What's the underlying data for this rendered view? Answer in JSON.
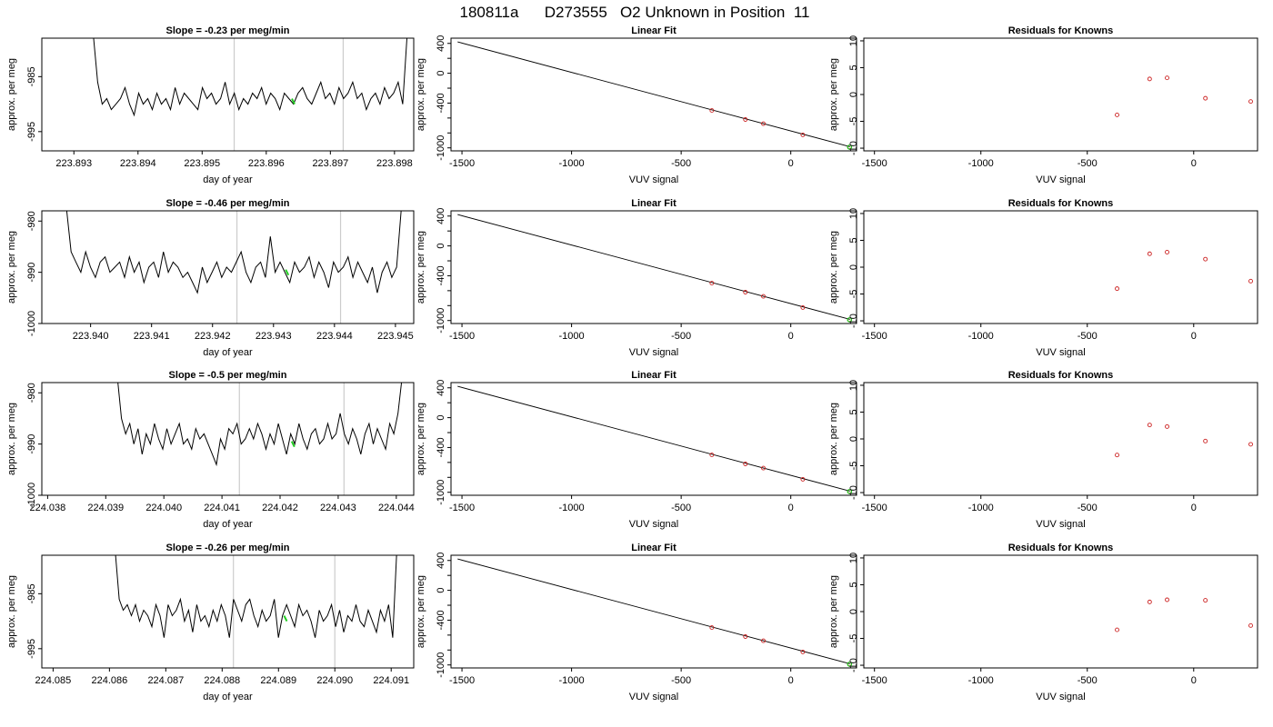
{
  "figure": {
    "title": "180811a      D273555   O2 Unknown in Position  11"
  },
  "chart_data": [
    {
      "type": "line",
      "panel": "trace-1",
      "title": "Slope =  -0.23  per meg/min",
      "xlabel": "day of year",
      "ylabel": "approx. per meg",
      "xlim": [
        223.8925,
        223.8983
      ],
      "ylim": [
        -998.5,
        -978.0
      ],
      "xticks": [
        "223.893",
        "223.894",
        "223.895",
        "223.896",
        "223.897",
        "223.898"
      ],
      "yticks": [
        "-985",
        "-995"
      ],
      "ytick_values": [
        -985,
        -995
      ],
      "vlines": [
        223.8955,
        223.8972
      ],
      "highlight": {
        "x": 223.8964,
        "y": -989.5,
        "color": "#22cc22"
      },
      "x_start": 223.8933,
      "x_end": 223.8982,
      "y_level": -989.5,
      "values": [
        -977,
        -986,
        -990,
        -989,
        -991,
        -990,
        -989,
        -987,
        -990,
        -992,
        -988,
        -990,
        -989,
        -991,
        -988,
        -990,
        -989,
        -991,
        -987,
        -990,
        -988,
        -989,
        -990,
        -991,
        -987,
        -989,
        -988,
        -990,
        -989,
        -986,
        -990,
        -988,
        -991,
        -989,
        -990,
        -988,
        -989,
        -987,
        -990,
        -988,
        -989,
        -991,
        -988,
        -989,
        -990,
        -988,
        -987,
        -989,
        -990,
        -988,
        -986,
        -989,
        -988,
        -990,
        -987,
        -989,
        -988,
        -986,
        -989,
        -988,
        -991,
        -989,
        -988,
        -990,
        -987,
        -989,
        -988,
        -986,
        -990,
        -977
      ]
    },
    {
      "type": "scatter",
      "panel": "fit-1",
      "title": "Linear Fit",
      "xlabel": "VUV signal",
      "ylabel": "approx. per meg",
      "xlim": [
        -1550,
        300
      ],
      "ylim": [
        -1040,
        470
      ],
      "xticks": [
        -1500,
        -1000,
        -500,
        0
      ],
      "yticks": [
        400,
        0,
        -400,
        -1000
      ],
      "fit_line": {
        "x": [
          -1520,
          270
        ],
        "y": [
          420,
          -985
        ]
      },
      "points": {
        "x": [
          -360,
          -207,
          -125,
          55,
          268
        ],
        "y": [
          -499,
          -620,
          -676,
          -826,
          -988
        ]
      },
      "unknown": {
        "x": 268,
        "y": -990
      }
    },
    {
      "type": "scatter",
      "panel": "residuals-1",
      "title": "Residuals for Knowns",
      "xlabel": "VUV signal",
      "ylabel": "approx. per meg",
      "xlim": [
        -1550,
        300
      ],
      "ylim": [
        -10.5,
        10.5
      ],
      "xticks": [
        -1500,
        -1000,
        -500,
        0
      ],
      "yticks": [
        10,
        5,
        0,
        -5,
        -10
      ],
      "points": {
        "x": [
          -360,
          -207,
          -125,
          55,
          268
        ],
        "y": [
          -3.8,
          2.9,
          3.1,
          -0.7,
          -1.3
        ]
      }
    },
    {
      "type": "line",
      "panel": "trace-2",
      "title": "Slope =  -0.46  per meg/min",
      "xlabel": "day of year",
      "ylabel": "approx. per meg",
      "xlim": [
        223.9392,
        223.9453
      ],
      "ylim": [
        -1000.0,
        -978.0
      ],
      "xticks": [
        "223.940",
        "223.941",
        "223.942",
        "223.943",
        "223.944",
        "223.945"
      ],
      "yticks": [
        "-980",
        "-990",
        "-1000"
      ],
      "ytick_values": [
        -980,
        -990,
        -1000
      ],
      "vlines": [
        223.9424,
        223.9441
      ],
      "highlight": {
        "x": 223.9432,
        "y": -990.0,
        "color": "#22cc22"
      },
      "x_start": 223.9396,
      "x_end": 223.9451,
      "y_level": -990.5,
      "values": [
        -977,
        -986,
        -988,
        -990,
        -986,
        -989,
        -991,
        -988,
        -987,
        -990,
        -989,
        -988,
        -991,
        -987,
        -990,
        -988,
        -992,
        -989,
        -988,
        -991,
        -986,
        -990,
        -988,
        -989,
        -991,
        -990,
        -992,
        -994,
        -989,
        -992,
        -990,
        -988,
        -991,
        -989,
        -990,
        -988,
        -986,
        -990,
        -992,
        -989,
        -988,
        -991,
        -983,
        -990,
        -988,
        -990,
        -992,
        -988,
        -990,
        -989,
        -987,
        -991,
        -988,
        -990,
        -993,
        -988,
        -990,
        -989,
        -987,
        -991,
        -988,
        -990,
        -992,
        -989,
        -994,
        -990,
        -988,
        -991,
        -989,
        -977
      ]
    },
    {
      "type": "scatter",
      "panel": "fit-2",
      "title": "Linear Fit",
      "xlabel": "VUV signal",
      "ylabel": "approx. per meg",
      "xlim": [
        -1550,
        300
      ],
      "ylim": [
        -1040,
        470
      ],
      "xticks": [
        -1500,
        -1000,
        -500,
        0
      ],
      "yticks": [
        400,
        0,
        -400,
        -1000
      ],
      "fit_line": {
        "x": [
          -1520,
          270
        ],
        "y": [
          420,
          -985
        ]
      },
      "points": {
        "x": [
          -360,
          -207,
          -125,
          55,
          268
        ],
        "y": [
          -499,
          -620,
          -676,
          -826,
          -988
        ]
      },
      "unknown": {
        "x": 268,
        "y": -990
      }
    },
    {
      "type": "scatter",
      "panel": "residuals-2",
      "title": "Residuals for Knowns",
      "xlabel": "VUV signal",
      "ylabel": "approx. per meg",
      "xlim": [
        -1550,
        300
      ],
      "ylim": [
        -10.5,
        10.5
      ],
      "xticks": [
        -1500,
        -1000,
        -500,
        0
      ],
      "yticks": [
        10,
        5,
        0,
        -5,
        -10
      ],
      "points": {
        "x": [
          -360,
          -207,
          -125,
          55,
          268
        ],
        "y": [
          -4.0,
          2.5,
          2.8,
          1.5,
          -2.6
        ]
      }
    },
    {
      "type": "line",
      "panel": "trace-3",
      "title": "Slope =  -0.5  per meg/min",
      "xlabel": "day of year",
      "ylabel": "approx. per meg",
      "xlim": [
        224.0379,
        224.0443
      ],
      "ylim": [
        -1000.0,
        -978.0
      ],
      "xticks": [
        "224.038",
        "224.039",
        "224.040",
        "224.041",
        "224.042",
        "224.043",
        "224.044"
      ],
      "yticks": [
        "-980",
        "-990",
        "-1000"
      ],
      "ytick_values": [
        -980,
        -990,
        -1000
      ],
      "vlines": [
        224.0413,
        224.0431
      ],
      "highlight": {
        "x": 224.0422,
        "y": -990.0,
        "color": "#22cc22"
      },
      "x_start": 224.0392,
      "x_end": 224.0441,
      "y_level": -989.5,
      "values": [
        -977,
        -985,
        -988,
        -986,
        -990,
        -987,
        -992,
        -988,
        -990,
        -986,
        -989,
        -991,
        -987,
        -990,
        -988,
        -986,
        -990,
        -989,
        -991,
        -987,
        -989,
        -988,
        -990,
        -992,
        -994,
        -989,
        -991,
        -987,
        -988,
        -986,
        -990,
        -989,
        -987,
        -989,
        -986,
        -988,
        -991,
        -988,
        -990,
        -986,
        -989,
        -992,
        -988,
        -990,
        -986,
        -989,
        -991,
        -988,
        -987,
        -990,
        -989,
        -986,
        -989,
        -988,
        -984,
        -988,
        -990,
        -987,
        -989,
        -992,
        -988,
        -986,
        -990,
        -987,
        -989,
        -991,
        -986,
        -988,
        -984,
        -977
      ]
    },
    {
      "type": "scatter",
      "panel": "fit-3",
      "title": "Linear Fit",
      "xlabel": "VUV signal",
      "ylabel": "approx. per meg",
      "xlim": [
        -1550,
        300
      ],
      "ylim": [
        -1040,
        470
      ],
      "xticks": [
        -1500,
        -1000,
        -500,
        0
      ],
      "yticks": [
        400,
        0,
        -400,
        -1000
      ],
      "fit_line": {
        "x": [
          -1520,
          270
        ],
        "y": [
          420,
          -985
        ]
      },
      "points": {
        "x": [
          -360,
          -207,
          -125,
          55,
          268
        ],
        "y": [
          -499,
          -620,
          -676,
          -826,
          -988
        ]
      },
      "unknown": {
        "x": 268,
        "y": -990
      }
    },
    {
      "type": "scatter",
      "panel": "residuals-3",
      "title": "Residuals for Knowns",
      "xlabel": "VUV signal",
      "ylabel": "approx. per meg",
      "xlim": [
        -1550,
        300
      ],
      "ylim": [
        -10.5,
        10.5
      ],
      "xticks": [
        -1500,
        -1000,
        -500,
        0
      ],
      "yticks": [
        10,
        5,
        0,
        -5,
        -10
      ],
      "points": {
        "x": [
          -360,
          -207,
          -125,
          55,
          268
        ],
        "y": [
          -3.0,
          2.6,
          2.3,
          -0.4,
          -1.0
        ]
      }
    },
    {
      "type": "line",
      "panel": "trace-4",
      "title": "Slope =  -0.26  per meg/min",
      "xlabel": "day of year",
      "ylabel": "approx. per meg",
      "xlim": [
        224.0848,
        224.0914
      ],
      "ylim": [
        -998.5,
        -978.0
      ],
      "xticks": [
        "224.085",
        "224.086",
        "224.087",
        "224.088",
        "224.089",
        "224.090",
        "224.091"
      ],
      "yticks": [
        "-985",
        "-995"
      ],
      "ytick_values": [
        -985,
        -995
      ],
      "vlines": [
        224.0882,
        224.09
      ],
      "highlight": {
        "x": 224.0891,
        "y": -989.5,
        "color": "#22cc22"
      },
      "x_start": 224.0861,
      "x_end": 224.0911,
      "y_level": -989.5,
      "values": [
        -977,
        -986,
        -988,
        -987,
        -989,
        -987,
        -990,
        -988,
        -989,
        -991,
        -987,
        -989,
        -993,
        -987,
        -989,
        -988,
        -986,
        -990,
        -988,
        -992,
        -987,
        -990,
        -989,
        -991,
        -988,
        -990,
        -987,
        -989,
        -993,
        -986,
        -988,
        -990,
        -987,
        -986,
        -989,
        -991,
        -988,
        -990,
        -989,
        -986,
        -993,
        -989,
        -987,
        -989,
        -991,
        -987,
        -989,
        -988,
        -990,
        -993,
        -988,
        -990,
        -989,
        -987,
        -991,
        -988,
        -992,
        -989,
        -990,
        -987,
        -990,
        -991,
        -988,
        -990,
        -992,
        -988,
        -990,
        -987,
        -993,
        -977
      ]
    },
    {
      "type": "scatter",
      "panel": "fit-4",
      "title": "Linear Fit",
      "xlabel": "VUV signal",
      "ylabel": "approx. per meg",
      "xlim": [
        -1550,
        300
      ],
      "ylim": [
        -1040,
        470
      ],
      "xticks": [
        -1500,
        -1000,
        -500,
        0
      ],
      "yticks": [
        400,
        0,
        -400,
        -1000
      ],
      "fit_line": {
        "x": [
          -1520,
          270
        ],
        "y": [
          420,
          -985
        ]
      },
      "points": {
        "x": [
          -360,
          -207,
          -125,
          55,
          268
        ],
        "y": [
          -499,
          -620,
          -676,
          -826,
          -988
        ]
      },
      "unknown": {
        "x": 268,
        "y": -990
      }
    },
    {
      "type": "scatter",
      "panel": "residuals-4",
      "title": "Residuals for Knowns",
      "xlabel": "VUV signal",
      "ylabel": "approx. per meg",
      "xlim": [
        -1550,
        300
      ],
      "ylim": [
        -10.5,
        10.5
      ],
      "xticks": [
        -1500,
        -1000,
        -500,
        0
      ],
      "yticks": [
        10,
        5,
        0,
        -5,
        -10
      ],
      "points": {
        "x": [
          -360,
          -207,
          -125,
          55,
          268
        ],
        "y": [
          -3.4,
          1.8,
          2.2,
          2.1,
          -2.6
        ]
      }
    }
  ],
  "colors": {
    "trace_line": "#000000",
    "fit_line": "#000000",
    "known_points": "#cc2222",
    "unknown_point": "#22cc22",
    "vline": "#cccccc",
    "axes": "#000000"
  }
}
